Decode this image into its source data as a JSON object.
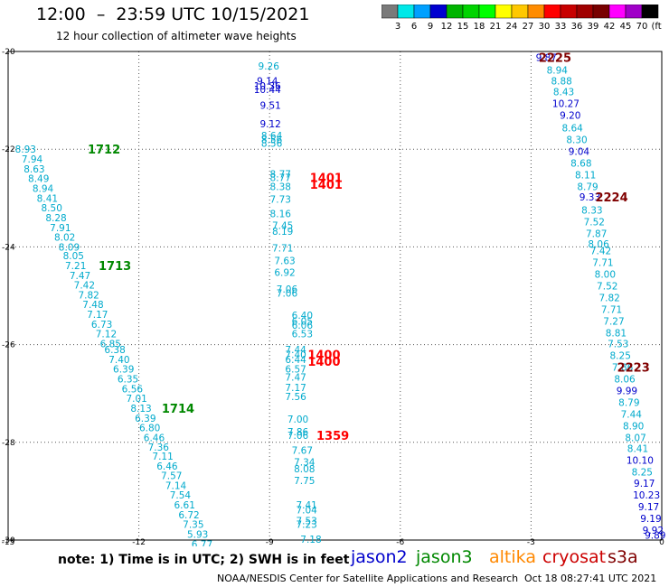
{
  "header": {
    "title": "12:00  –  23:59 UTC 10/15/2021",
    "subtitle": "12 hour collection of altimeter wave heights"
  },
  "colorbar": {
    "colors": [
      "#7a7a7a",
      "#00e8e8",
      "#00a0ff",
      "#0000d0",
      "#00b400",
      "#00d400",
      "#00ff00",
      "#ffff00",
      "#ffc800",
      "#ff8c00",
      "#ff0000",
      "#c80000",
      "#a00000",
      "#780000",
      "#ff00ff",
      "#a000c8",
      "#000000"
    ],
    "labels": [
      "3",
      "6",
      "9",
      "12",
      "15",
      "18",
      "21",
      "24",
      "27",
      "30",
      "33",
      "36",
      "39",
      "42",
      "45",
      "70",
      "(ft)"
    ]
  },
  "footer": {
    "note": "note:  1) Time is in UTC;  2) SWH is in feet",
    "satellites": [
      {
        "name": "jason2",
        "color": "#0000cc"
      },
      {
        "name": "jason3",
        "color": "#008800"
      },
      {
        "name": "altika",
        "color": "#ff8800"
      },
      {
        "name": "cryosat",
        "color": "#cc0000"
      },
      {
        "name": "s3a",
        "color": "#800000"
      }
    ],
    "source": "NOAA/NESDIS Center for Satellite Applications and Research",
    "timestamp": "Oct 18 08:27:41 UTC 2021"
  },
  "chart_data": {
    "type": "scatter",
    "xlim": [
      -15,
      0
    ],
    "ylim": [
      -30,
      -20
    ],
    "x_ticks": [
      -15,
      -12,
      -9,
      -6,
      -3,
      0
    ],
    "y_ticks": [
      -20,
      -22,
      -24,
      -26,
      -28,
      -30
    ],
    "grid": true,
    "palette": {
      "cyan": "#00aacc",
      "blue": "#0000cc",
      "red": "#ff0000",
      "green": "#008800",
      "darkred": "#800000"
    },
    "points": [
      {
        "x": -9.02,
        "y": -20.3,
        "v": "9.26",
        "c": "cyan"
      },
      {
        "x": -9.05,
        "y": -20.6,
        "v": "9.14",
        "c": "blue"
      },
      {
        "x": -9.05,
        "y": -20.7,
        "v": "10.36",
        "c": "blue"
      },
      {
        "x": -9.05,
        "y": -20.78,
        "v": "10.44",
        "c": "blue"
      },
      {
        "x": -8.98,
        "y": -21.1,
        "v": "9.51",
        "c": "blue"
      },
      {
        "x": -8.98,
        "y": -21.48,
        "v": "9.12",
        "c": "blue"
      },
      {
        "x": -8.95,
        "y": -21.72,
        "v": "8.64",
        "c": "cyan"
      },
      {
        "x": -8.95,
        "y": -21.8,
        "v": "8.56",
        "c": "cyan"
      },
      {
        "x": -8.95,
        "y": -21.88,
        "v": "8.56",
        "c": "cyan"
      },
      {
        "x": -8.75,
        "y": -22.5,
        "v": "8.77",
        "c": "cyan"
      },
      {
        "x": -8.75,
        "y": -22.58,
        "v": "8.77",
        "c": "cyan"
      },
      {
        "x": -8.75,
        "y": -22.76,
        "v": "8.38",
        "c": "cyan"
      },
      {
        "x": -8.75,
        "y": -23.02,
        "v": "7.73",
        "c": "cyan"
      },
      {
        "x": -8.75,
        "y": -23.32,
        "v": "8.16",
        "c": "cyan"
      },
      {
        "x": -8.7,
        "y": -23.56,
        "v": "7.45",
        "c": "cyan"
      },
      {
        "x": -8.7,
        "y": -23.68,
        "v": "8.19",
        "c": "cyan"
      },
      {
        "x": -8.7,
        "y": -24.02,
        "v": "7.71",
        "c": "cyan"
      },
      {
        "x": -8.65,
        "y": -24.28,
        "v": "7.63",
        "c": "cyan"
      },
      {
        "x": -8.65,
        "y": -24.52,
        "v": "6.92",
        "c": "cyan"
      },
      {
        "x": -8.6,
        "y": -24.86,
        "v": "7.06",
        "c": "cyan"
      },
      {
        "x": -8.6,
        "y": -24.94,
        "v": "7.06",
        "c": "cyan"
      },
      {
        "x": -8.25,
        "y": -25.4,
        "v": "6.40",
        "c": "cyan"
      },
      {
        "x": -8.25,
        "y": -25.52,
        "v": "6.05",
        "c": "cyan"
      },
      {
        "x": -8.25,
        "y": -25.6,
        "v": "6.06",
        "c": "cyan"
      },
      {
        "x": -8.25,
        "y": -25.78,
        "v": "6.53",
        "c": "cyan"
      },
      {
        "x": -8.4,
        "y": -26.1,
        "v": "7.44",
        "c": "cyan"
      },
      {
        "x": -8.4,
        "y": -26.2,
        "v": "7.40",
        "c": "cyan"
      },
      {
        "x": -8.4,
        "y": -26.3,
        "v": "6.44",
        "c": "cyan"
      },
      {
        "x": -8.4,
        "y": -26.5,
        "v": "6.57",
        "c": "cyan"
      },
      {
        "x": -8.4,
        "y": -26.66,
        "v": "7.47",
        "c": "cyan"
      },
      {
        "x": -8.4,
        "y": -26.88,
        "v": "7.17",
        "c": "cyan"
      },
      {
        "x": -8.4,
        "y": -27.06,
        "v": "7.56",
        "c": "cyan"
      },
      {
        "x": -8.35,
        "y": -27.52,
        "v": "7.00",
        "c": "cyan"
      },
      {
        "x": -8.35,
        "y": -27.78,
        "v": "7.86",
        "c": "cyan"
      },
      {
        "x": -8.35,
        "y": -27.86,
        "v": "7.06",
        "c": "cyan"
      },
      {
        "x": -8.25,
        "y": -28.16,
        "v": "7.67",
        "c": "cyan"
      },
      {
        "x": -8.2,
        "y": -28.4,
        "v": "7.34",
        "c": "cyan"
      },
      {
        "x": -8.2,
        "y": -28.54,
        "v": "8.08",
        "c": "cyan"
      },
      {
        "x": -8.2,
        "y": -28.78,
        "v": "7.75",
        "c": "cyan"
      },
      {
        "x": -8.15,
        "y": -29.28,
        "v": "7.41",
        "c": "cyan"
      },
      {
        "x": -8.15,
        "y": -29.38,
        "v": "7.04",
        "c": "cyan"
      },
      {
        "x": -8.15,
        "y": -29.6,
        "v": "7.53",
        "c": "cyan"
      },
      {
        "x": -8.15,
        "y": -29.68,
        "v": "7.23",
        "c": "cyan"
      },
      {
        "x": -8.05,
        "y": -29.98,
        "v": "7.18",
        "c": "cyan"
      },
      {
        "x": -14.6,
        "y": -22.0,
        "v": "8.93",
        "c": "cyan"
      },
      {
        "x": -14.45,
        "y": -22.2,
        "v": "7.94",
        "c": "cyan"
      },
      {
        "x": -14.4,
        "y": -22.4,
        "v": "8.63",
        "c": "cyan"
      },
      {
        "x": -14.3,
        "y": -22.6,
        "v": "8.49",
        "c": "cyan"
      },
      {
        "x": -14.2,
        "y": -22.8,
        "v": "8.94",
        "c": "cyan"
      },
      {
        "x": -14.1,
        "y": -23.0,
        "v": "8.41",
        "c": "cyan"
      },
      {
        "x": -14.0,
        "y": -23.2,
        "v": "8.50",
        "c": "cyan"
      },
      {
        "x": -13.9,
        "y": -23.4,
        "v": "8.28",
        "c": "cyan"
      },
      {
        "x": -13.8,
        "y": -23.6,
        "v": "7.91",
        "c": "cyan"
      },
      {
        "x": -13.7,
        "y": -23.8,
        "v": "8.02",
        "c": "cyan"
      },
      {
        "x": -13.6,
        "y": -24.0,
        "v": "8.09",
        "c": "cyan"
      },
      {
        "x": -13.5,
        "y": -24.18,
        "v": "8.05",
        "c": "cyan"
      },
      {
        "x": -13.45,
        "y": -24.38,
        "v": "7.21",
        "c": "cyan"
      },
      {
        "x": -13.35,
        "y": -24.58,
        "v": "7.47",
        "c": "cyan"
      },
      {
        "x": -13.25,
        "y": -24.78,
        "v": "7.42",
        "c": "cyan"
      },
      {
        "x": -13.15,
        "y": -24.98,
        "v": "7.82",
        "c": "cyan"
      },
      {
        "x": -13.05,
        "y": -25.18,
        "v": "7.48",
        "c": "cyan"
      },
      {
        "x": -12.95,
        "y": -25.38,
        "v": "7.17",
        "c": "cyan"
      },
      {
        "x": -12.85,
        "y": -25.58,
        "v": "6.73",
        "c": "cyan"
      },
      {
        "x": -12.75,
        "y": -25.78,
        "v": "7.12",
        "c": "cyan"
      },
      {
        "x": -12.65,
        "y": -25.98,
        "v": "6.85",
        "c": "cyan"
      },
      {
        "x": -12.55,
        "y": -26.1,
        "v": "6.38",
        "c": "cyan"
      },
      {
        "x": -12.45,
        "y": -26.3,
        "v": "7.40",
        "c": "cyan"
      },
      {
        "x": -12.35,
        "y": -26.5,
        "v": "6.39",
        "c": "cyan"
      },
      {
        "x": -12.25,
        "y": -26.7,
        "v": "6.35",
        "c": "cyan"
      },
      {
        "x": -12.15,
        "y": -26.9,
        "v": "6.56",
        "c": "cyan"
      },
      {
        "x": -12.05,
        "y": -27.1,
        "v": "7.01",
        "c": "cyan"
      },
      {
        "x": -11.95,
        "y": -27.3,
        "v": "8.13",
        "c": "cyan"
      },
      {
        "x": -11.85,
        "y": -27.5,
        "v": "6.39",
        "c": "cyan"
      },
      {
        "x": -11.75,
        "y": -27.7,
        "v": "6.80",
        "c": "cyan"
      },
      {
        "x": -11.65,
        "y": -27.9,
        "v": "6.46",
        "c": "cyan"
      },
      {
        "x": -11.55,
        "y": -28.1,
        "v": "7.36",
        "c": "cyan"
      },
      {
        "x": -11.45,
        "y": -28.28,
        "v": "7.11",
        "c": "cyan"
      },
      {
        "x": -11.35,
        "y": -28.48,
        "v": "6.46",
        "c": "cyan"
      },
      {
        "x": -11.25,
        "y": -28.68,
        "v": "7.57",
        "c": "cyan"
      },
      {
        "x": -11.15,
        "y": -28.88,
        "v": "7.14",
        "c": "cyan"
      },
      {
        "x": -11.05,
        "y": -29.08,
        "v": "7.54",
        "c": "cyan"
      },
      {
        "x": -10.95,
        "y": -29.28,
        "v": "6.61",
        "c": "cyan"
      },
      {
        "x": -10.85,
        "y": -29.48,
        "v": "6.72",
        "c": "cyan"
      },
      {
        "x": -10.75,
        "y": -29.68,
        "v": "7.35",
        "c": "cyan"
      },
      {
        "x": -10.65,
        "y": -29.88,
        "v": "5.93",
        "c": "cyan"
      },
      {
        "x": -10.55,
        "y": -30.08,
        "v": "6.77",
        "c": "cyan"
      },
      {
        "x": -2.65,
        "y": -20.12,
        "v": "9.87",
        "c": "blue"
      },
      {
        "x": -2.4,
        "y": -20.38,
        "v": "8.94",
        "c": "cyan"
      },
      {
        "x": -2.3,
        "y": -20.6,
        "v": "8.88",
        "c": "cyan"
      },
      {
        "x": -2.25,
        "y": -20.82,
        "v": "8.43",
        "c": "cyan"
      },
      {
        "x": -2.2,
        "y": -21.06,
        "v": "10.27",
        "c": "blue"
      },
      {
        "x": -2.1,
        "y": -21.3,
        "v": "9.20",
        "c": "blue"
      },
      {
        "x": -2.05,
        "y": -21.56,
        "v": "8.64",
        "c": "cyan"
      },
      {
        "x": -1.95,
        "y": -21.8,
        "v": "8.30",
        "c": "cyan"
      },
      {
        "x": -1.9,
        "y": -22.04,
        "v": "9.04",
        "c": "blue"
      },
      {
        "x": -1.85,
        "y": -22.28,
        "v": "8.68",
        "c": "cyan"
      },
      {
        "x": -1.75,
        "y": -22.52,
        "v": "8.11",
        "c": "cyan"
      },
      {
        "x": -1.7,
        "y": -22.76,
        "v": "8.79",
        "c": "cyan"
      },
      {
        "x": -1.65,
        "y": -22.98,
        "v": "9.33",
        "c": "blue"
      },
      {
        "x": -1.6,
        "y": -23.24,
        "v": "8.33",
        "c": "cyan"
      },
      {
        "x": -1.55,
        "y": -23.48,
        "v": "7.52",
        "c": "cyan"
      },
      {
        "x": -1.5,
        "y": -23.72,
        "v": "7.87",
        "c": "cyan"
      },
      {
        "x": -1.45,
        "y": -23.94,
        "v": "8.06",
        "c": "cyan"
      },
      {
        "x": -1.4,
        "y": -24.08,
        "v": "7.42",
        "c": "cyan"
      },
      {
        "x": -1.35,
        "y": -24.32,
        "v": "7.71",
        "c": "cyan"
      },
      {
        "x": -1.3,
        "y": -24.56,
        "v": "8.00",
        "c": "cyan"
      },
      {
        "x": -1.25,
        "y": -24.8,
        "v": "7.52",
        "c": "cyan"
      },
      {
        "x": -1.2,
        "y": -25.04,
        "v": "7.82",
        "c": "cyan"
      },
      {
        "x": -1.15,
        "y": -25.28,
        "v": "7.71",
        "c": "cyan"
      },
      {
        "x": -1.1,
        "y": -25.52,
        "v": "7.27",
        "c": "cyan"
      },
      {
        "x": -1.05,
        "y": -25.76,
        "v": "8.81",
        "c": "cyan"
      },
      {
        "x": -1.0,
        "y": -25.98,
        "v": "7.53",
        "c": "cyan"
      },
      {
        "x": -0.95,
        "y": -26.22,
        "v": "8.25",
        "c": "cyan"
      },
      {
        "x": -0.9,
        "y": -26.46,
        "v": "7.86",
        "c": "cyan"
      },
      {
        "x": -0.85,
        "y": -26.7,
        "v": "8.06",
        "c": "cyan"
      },
      {
        "x": -0.8,
        "y": -26.94,
        "v": "9.99",
        "c": "blue"
      },
      {
        "x": -0.75,
        "y": -27.18,
        "v": "8.79",
        "c": "cyan"
      },
      {
        "x": -0.7,
        "y": -27.42,
        "v": "7.44",
        "c": "cyan"
      },
      {
        "x": -0.65,
        "y": -27.66,
        "v": "8.90",
        "c": "cyan"
      },
      {
        "x": -0.6,
        "y": -27.9,
        "v": "8.07",
        "c": "cyan"
      },
      {
        "x": -0.55,
        "y": -28.12,
        "v": "8.41",
        "c": "cyan"
      },
      {
        "x": -0.5,
        "y": -28.36,
        "v": "10.10",
        "c": "blue"
      },
      {
        "x": -0.45,
        "y": -28.6,
        "v": "8.25",
        "c": "cyan"
      },
      {
        "x": -0.4,
        "y": -28.84,
        "v": "9.17",
        "c": "blue"
      },
      {
        "x": -0.35,
        "y": -29.08,
        "v": "10.23",
        "c": "blue"
      },
      {
        "x": -0.3,
        "y": -29.32,
        "v": "9.17",
        "c": "blue"
      },
      {
        "x": -0.25,
        "y": -29.56,
        "v": "9.19",
        "c": "blue"
      },
      {
        "x": -0.2,
        "y": -29.8,
        "v": "9.92",
        "c": "blue"
      },
      {
        "x": -0.15,
        "y": -29.9,
        "v": "9.89",
        "c": "blue"
      }
    ],
    "time_labels": [
      {
        "x": -12.8,
        "y": -22.0,
        "v": "1712",
        "c": "green"
      },
      {
        "x": -12.55,
        "y": -24.38,
        "v": "1713",
        "c": "green"
      },
      {
        "x": -11.1,
        "y": -27.3,
        "v": "1714",
        "c": "green"
      },
      {
        "x": -7.7,
        "y": -22.58,
        "v": "1401",
        "c": "red"
      },
      {
        "x": -7.7,
        "y": -22.72,
        "v": "1401",
        "c": "red"
      },
      {
        "x": -7.75,
        "y": -26.2,
        "v": "1400",
        "c": "red"
      },
      {
        "x": -7.75,
        "y": -26.34,
        "v": "1400",
        "c": "red"
      },
      {
        "x": -7.55,
        "y": -27.86,
        "v": "1359",
        "c": "red"
      },
      {
        "x": -2.45,
        "y": -20.12,
        "v": "2225",
        "c": "darkred"
      },
      {
        "x": -1.15,
        "y": -22.98,
        "v": "2224",
        "c": "darkred"
      },
      {
        "x": -0.65,
        "y": -26.46,
        "v": "2223",
        "c": "darkred"
      }
    ]
  }
}
